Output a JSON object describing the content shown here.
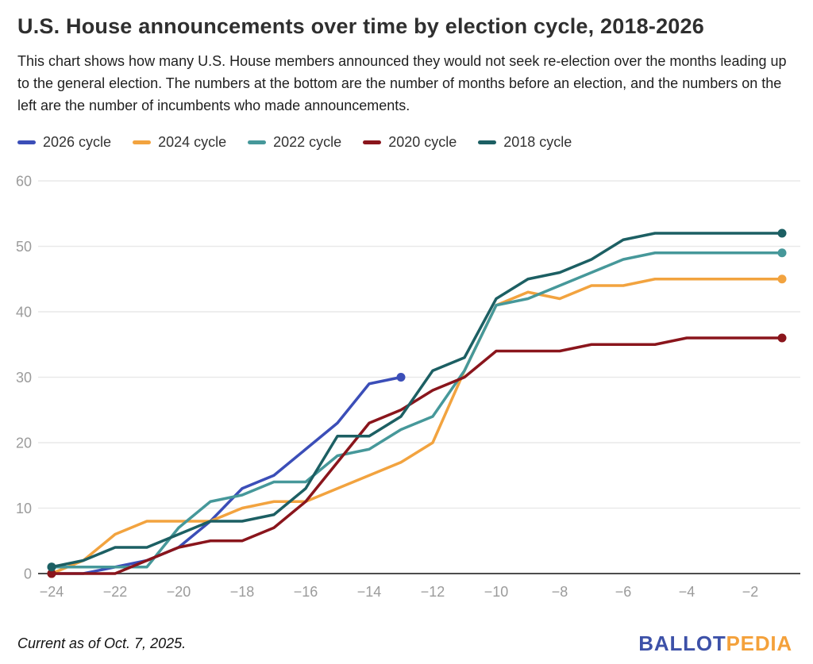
{
  "header": {
    "title": "U.S. House announcements over time by election cycle, 2018-2026",
    "description": "This chart shows how many U.S. House members announced they would not seek re-election over the months leading up to the general election. The numbers at the bottom are the number of months before an election, and the numbers on the left are the number of incumbents who made announcements."
  },
  "chart_data": {
    "type": "line",
    "xlabel": "months before election",
    "ylabel": "number of incumbents who made announcements",
    "ylim": [
      0,
      60
    ],
    "yticks": [
      0,
      10,
      20,
      30,
      40,
      50,
      60
    ],
    "xticks": [
      -24,
      -22,
      -20,
      -18,
      -16,
      -14,
      -12,
      -10,
      -8,
      -6,
      -4,
      -2
    ],
    "grid": true,
    "legend_position": "top",
    "colors": {
      "grid": "#e9e9e9",
      "axis": "#4d4d4d",
      "tick_label": "#9b9b9b"
    },
    "series": [
      {
        "name": "2026 cycle",
        "color": "#3B4EB8",
        "x": [
          -24,
          -23,
          -22,
          -21,
          -20,
          -19,
          -18,
          -17,
          -16,
          -15,
          -14,
          -13
        ],
        "values": [
          0,
          0,
          1,
          2,
          4,
          8,
          13,
          15,
          19,
          23,
          29,
          30
        ]
      },
      {
        "name": "2024 cycle",
        "color": "#F2A33F",
        "x": [
          -24,
          -23,
          -22,
          -21,
          -20,
          -19,
          -18,
          -17,
          -16,
          -15,
          -14,
          -13,
          -12,
          -11,
          -10,
          -9,
          -8,
          -7,
          -6,
          -5,
          -4,
          -3,
          -2,
          -1
        ],
        "values": [
          0,
          2,
          6,
          8,
          8,
          8,
          10,
          11,
          11,
          13,
          15,
          17,
          20,
          31,
          41,
          43,
          42,
          44,
          44,
          45,
          45,
          45,
          45,
          45
        ]
      },
      {
        "name": "2022 cycle",
        "color": "#46989A",
        "x": [
          -24,
          -23,
          -22,
          -21,
          -20,
          -19,
          -18,
          -17,
          -16,
          -15,
          -14,
          -13,
          -12,
          -11,
          -10,
          -9,
          -8,
          -7,
          -6,
          -5,
          -4,
          -3,
          -2,
          -1
        ],
        "values": [
          1,
          1,
          1,
          1,
          7,
          11,
          12,
          14,
          14,
          18,
          19,
          22,
          24,
          31,
          41,
          42,
          44,
          46,
          48,
          49,
          49,
          49,
          49,
          49
        ]
      },
      {
        "name": "2020 cycle",
        "color": "#8A151C",
        "x": [
          -24,
          -23,
          -22,
          -21,
          -20,
          -19,
          -18,
          -17,
          -16,
          -15,
          -14,
          -13,
          -12,
          -11,
          -10,
          -9,
          -8,
          -7,
          -6,
          -5,
          -4,
          -3,
          -2,
          -1
        ],
        "values": [
          0,
          0,
          0,
          2,
          4,
          5,
          5,
          7,
          11,
          17,
          23,
          25,
          28,
          30,
          34,
          34,
          34,
          35,
          35,
          35,
          36,
          36,
          36,
          36
        ]
      },
      {
        "name": "2018 cycle",
        "color": "#1C5F63",
        "x": [
          -24,
          -23,
          -22,
          -21,
          -20,
          -19,
          -18,
          -17,
          -16,
          -15,
          -14,
          -13,
          -12,
          -11,
          -10,
          -9,
          -8,
          -7,
          -6,
          -5,
          -4,
          -3,
          -2,
          -1
        ],
        "values": [
          1,
          2,
          4,
          4,
          6,
          8,
          8,
          9,
          13,
          21,
          21,
          24,
          31,
          33,
          42,
          45,
          46,
          48,
          51,
          52,
          52,
          52,
          52,
          52
        ]
      }
    ]
  },
  "footer": {
    "note": "Current as of Oct. 7, 2025.",
    "logo_part1": "BALLOT",
    "logo_part2": "PEDIA"
  }
}
